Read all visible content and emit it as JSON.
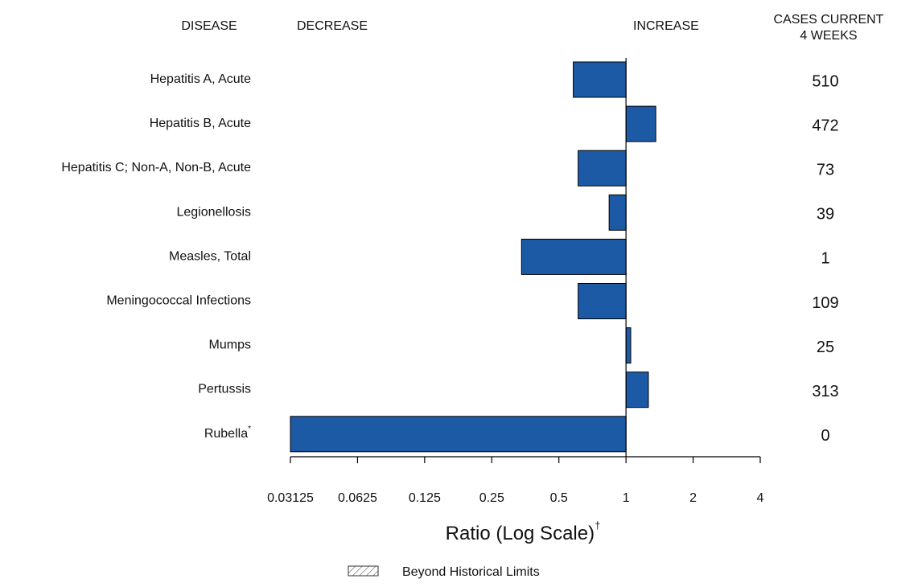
{
  "chart_data": {
    "type": "hbar",
    "column_headers": {
      "disease": "DISEASE",
      "decrease": "DECREASE",
      "increase": "INCREASE",
      "cases": [
        "CASES CURRENT",
        "4 WEEKS"
      ]
    },
    "categories": [
      "Hepatitis A, Acute",
      "Hepatitis B, Acute",
      "Hepatitis C; Non-A, Non-B, Acute",
      "Legionellosis",
      "Measles, Total",
      "Meningococcal Infections",
      "Mumps",
      "Pertussis",
      "Rubella"
    ],
    "category_marks": [
      null,
      null,
      null,
      null,
      null,
      null,
      null,
      null,
      "*"
    ],
    "values": [
      0.58,
      1.36,
      0.61,
      0.84,
      0.34,
      0.61,
      1.05,
      1.26,
      0.03125
    ],
    "cases": [
      510,
      472,
      73,
      39,
      1,
      109,
      25,
      313,
      0
    ],
    "color": "#1d5aa6",
    "baseline": 1,
    "log_scale": true,
    "xlim": [
      0.03125,
      4
    ],
    "xticks": [
      0.03125,
      0.0625,
      0.125,
      0.25,
      0.5,
      1,
      2,
      4
    ],
    "x_label": "Ratio (Log Scale)",
    "x_label_mark": "†",
    "legend_label": "Beyond Historical Limits"
  }
}
